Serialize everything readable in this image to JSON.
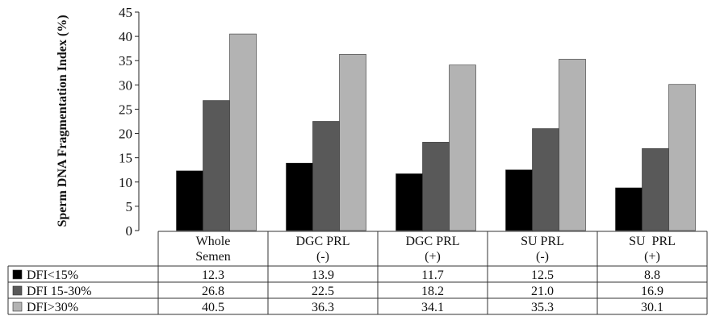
{
  "chart_data": {
    "type": "bar",
    "ylabel": "Sperm DNA Fragmentation Index (%)",
    "xlabel": "",
    "ylim": [
      0,
      45
    ],
    "yticks": [
      0,
      5,
      10,
      15,
      20,
      25,
      30,
      35,
      40,
      45
    ],
    "grid": false,
    "legend": "data-table",
    "categories": [
      [
        "Whole",
        "Semen"
      ],
      [
        "DGC PRL",
        "(-)"
      ],
      [
        "DGC PRL",
        "(+)"
      ],
      [
        "SU PRL",
        "(-)"
      ],
      [
        "SU  PRL",
        "(+)"
      ]
    ],
    "series": [
      {
        "name": "DFI<15%",
        "color": "#000000",
        "values": [
          12.3,
          13.9,
          11.7,
          12.5,
          8.8
        ],
        "labels": [
          "12.3",
          "13.9",
          "11.7",
          "12.5",
          "8.8"
        ]
      },
      {
        "name": "DFI 15-30%",
        "color": "#595959",
        "values": [
          26.8,
          22.5,
          18.2,
          21.0,
          16.9
        ],
        "labels": [
          "26.8",
          "22.5",
          "18.2",
          "21.0",
          "16.9"
        ]
      },
      {
        "name": "DFI>30%",
        "color": "#b3b3b3",
        "values": [
          40.5,
          36.3,
          34.1,
          35.3,
          30.1
        ],
        "labels": [
          "40.5",
          "36.3",
          "34.1",
          "35.3",
          "30.1"
        ]
      }
    ]
  }
}
